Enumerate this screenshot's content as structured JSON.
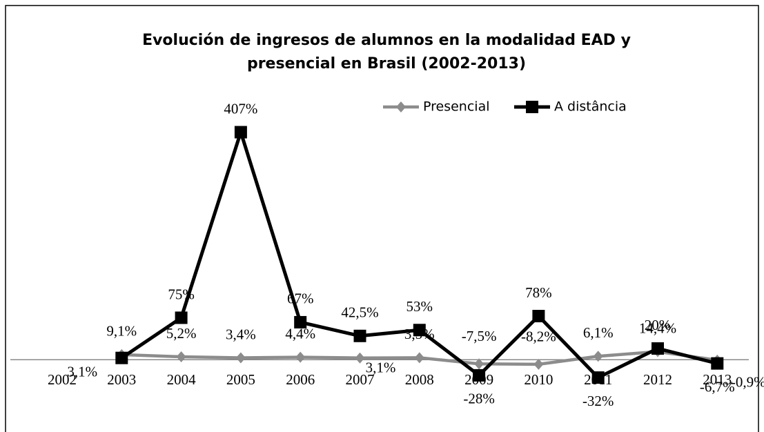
{
  "chart_data": {
    "type": "line",
    "title": "Evolución de ingresos de alumnos en la modalidad  EAD y presencial en Brasil (2002-2013)",
    "categories": [
      "2002",
      "2003",
      "2004",
      "2005",
      "2006",
      "2007",
      "2008",
      "2009",
      "2010",
      "2011",
      "2012",
      "2013"
    ],
    "ylim": [
      -50,
      420
    ],
    "legend": "top-right",
    "series": [
      {
        "name": "Presencial",
        "color": "#8c8c8c",
        "marker": "diamond",
        "values": [
          null,
          9.1,
          5.2,
          3.4,
          4.4,
          3.1,
          3.5,
          -7.5,
          -8.2,
          6.1,
          14.4,
          -0.9
        ],
        "value_labels": [
          null,
          "9,1%",
          "5,2%",
          "3,4%",
          "4,4%",
          "3,1%",
          "3,5%",
          "-7,5%",
          "-8,2%",
          "6,1%",
          "14,4%",
          "-0,9%"
        ]
      },
      {
        "name": "A distância",
        "color": "#000000",
        "marker": "square",
        "values": [
          null,
          3.1,
          75,
          407,
          67,
          42.5,
          53,
          -28,
          78,
          -32,
          20,
          -6.7
        ],
        "value_labels": [
          null,
          "3,1%",
          "75%",
          "407%",
          "67%",
          "42,5%",
          "53%",
          "-28%",
          "78%",
          "-32%",
          "20%",
          "-6,7%"
        ]
      }
    ]
  }
}
